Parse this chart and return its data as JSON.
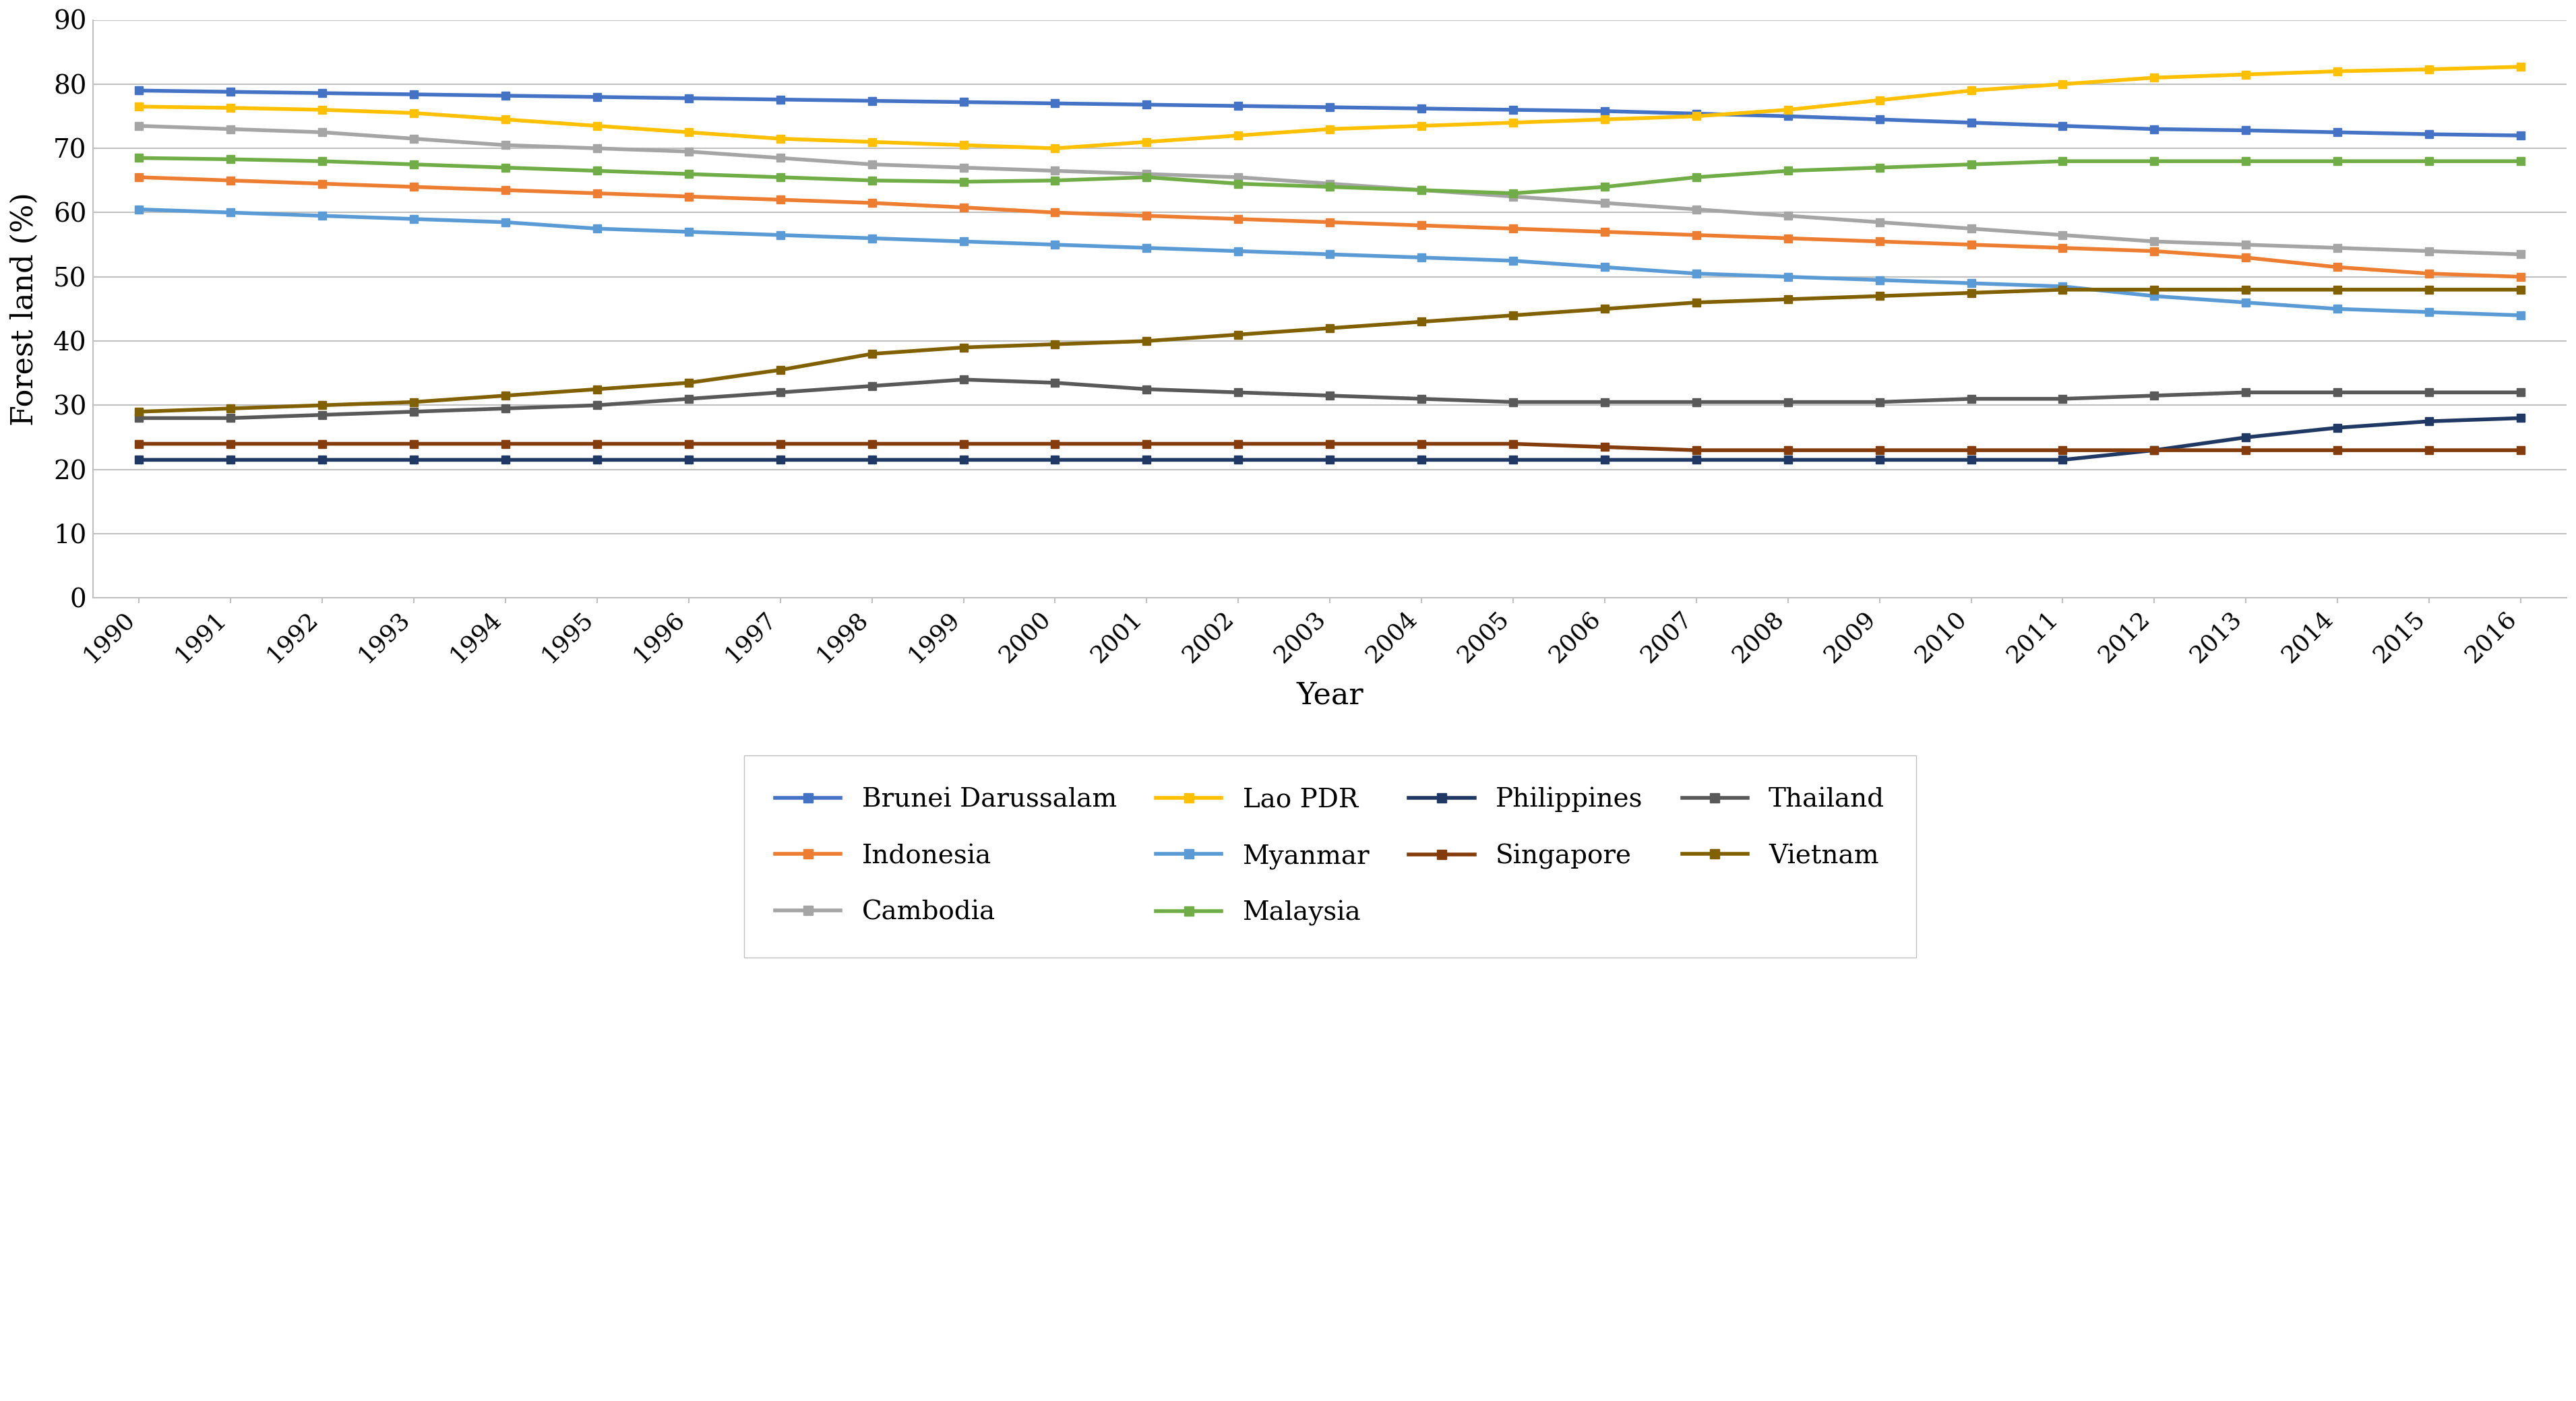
{
  "years": [
    1990,
    1991,
    1992,
    1993,
    1994,
    1995,
    1996,
    1997,
    1998,
    1999,
    2000,
    2001,
    2002,
    2003,
    2004,
    2005,
    2006,
    2007,
    2008,
    2009,
    2010,
    2011,
    2012,
    2013,
    2014,
    2015,
    2016
  ],
  "series": {
    "Brunei Darussalam": {
      "color": "#4472C4",
      "data": [
        79.0,
        78.8,
        78.6,
        78.4,
        78.2,
        78.0,
        77.8,
        77.6,
        77.4,
        77.2,
        77.0,
        76.8,
        76.6,
        76.4,
        76.2,
        76.0,
        75.8,
        75.4,
        75.0,
        74.5,
        74.0,
        73.5,
        73.0,
        72.8,
        72.5,
        72.2,
        72.0
      ]
    },
    "Indonesia": {
      "color": "#ED7D31",
      "data": [
        65.5,
        65.0,
        64.5,
        64.0,
        63.5,
        63.0,
        62.5,
        62.0,
        61.5,
        60.8,
        60.0,
        59.5,
        59.0,
        58.5,
        58.0,
        57.5,
        57.0,
        56.5,
        56.0,
        55.5,
        55.0,
        54.5,
        54.0,
        53.0,
        51.5,
        50.5,
        50.0
      ]
    },
    "Cambodia": {
      "color": "#A5A5A5",
      "data": [
        73.5,
        73.0,
        72.5,
        71.5,
        70.5,
        70.0,
        69.5,
        68.5,
        67.5,
        67.0,
        66.5,
        66.0,
        65.5,
        64.5,
        63.5,
        62.5,
        61.5,
        60.5,
        59.5,
        58.5,
        57.5,
        56.5,
        55.5,
        55.0,
        54.5,
        54.0,
        53.5
      ]
    },
    "Lao PDR": {
      "color": "#FFC000",
      "data": [
        76.5,
        76.3,
        76.0,
        75.5,
        74.5,
        73.5,
        72.5,
        71.5,
        71.0,
        70.5,
        70.0,
        71.0,
        72.0,
        73.0,
        73.5,
        74.0,
        74.5,
        75.0,
        76.0,
        77.5,
        79.0,
        80.0,
        81.0,
        81.5,
        82.0,
        82.3,
        82.7
      ]
    },
    "Myanmar": {
      "color": "#5B9BD5",
      "data": [
        60.5,
        60.0,
        59.5,
        59.0,
        58.5,
        57.5,
        57.0,
        56.5,
        56.0,
        55.5,
        55.0,
        54.5,
        54.0,
        53.5,
        53.0,
        52.5,
        51.5,
        50.5,
        50.0,
        49.5,
        49.0,
        48.5,
        47.0,
        46.0,
        45.0,
        44.5,
        44.0
      ]
    },
    "Malaysia": {
      "color": "#70AD47",
      "data": [
        68.5,
        68.3,
        68.0,
        67.5,
        67.0,
        66.5,
        66.0,
        65.5,
        65.0,
        64.8,
        65.0,
        65.5,
        64.5,
        64.0,
        63.5,
        63.0,
        64.0,
        65.5,
        66.5,
        67.0,
        67.5,
        68.0,
        68.0,
        68.0,
        68.0,
        68.0,
        68.0
      ]
    },
    "Philippines": {
      "color": "#1F3864",
      "data": [
        21.5,
        21.5,
        21.5,
        21.5,
        21.5,
        21.5,
        21.5,
        21.5,
        21.5,
        21.5,
        21.5,
        21.5,
        21.5,
        21.5,
        21.5,
        21.5,
        21.5,
        21.5,
        21.5,
        21.5,
        21.5,
        21.5,
        23.0,
        25.0,
        26.5,
        27.5,
        28.0
      ]
    },
    "Singapore": {
      "color": "#843C0C",
      "data": [
        24.0,
        24.0,
        24.0,
        24.0,
        24.0,
        24.0,
        24.0,
        24.0,
        24.0,
        24.0,
        24.0,
        24.0,
        24.0,
        24.0,
        24.0,
        24.0,
        23.5,
        23.0,
        23.0,
        23.0,
        23.0,
        23.0,
        23.0,
        23.0,
        23.0,
        23.0,
        23.0
      ]
    },
    "Thailand": {
      "color": "#595959",
      "data": [
        28.0,
        28.0,
        28.5,
        29.0,
        29.5,
        30.0,
        31.0,
        32.0,
        33.0,
        34.0,
        33.5,
        32.5,
        32.0,
        31.5,
        31.0,
        30.5,
        30.5,
        30.5,
        30.5,
        30.5,
        31.0,
        31.0,
        31.5,
        32.0,
        32.0,
        32.0,
        32.0
      ]
    },
    "Vietnam": {
      "color": "#806000",
      "data": [
        29.0,
        29.5,
        30.0,
        30.5,
        31.5,
        32.5,
        33.5,
        35.5,
        38.0,
        39.0,
        39.5,
        40.0,
        41.0,
        42.0,
        43.0,
        44.0,
        45.0,
        46.0,
        46.5,
        47.0,
        47.5,
        48.0,
        48.0,
        48.0,
        48.0,
        48.0,
        48.0
      ]
    }
  },
  "ylabel": "Forest land (%)",
  "xlabel": "Year",
  "ylim": [
    0,
    90
  ],
  "yticks": [
    0,
    10,
    20,
    30,
    40,
    50,
    60,
    70,
    80,
    90
  ],
  "background_color": "#FFFFFF",
  "grid_color": "#C0C0C0",
  "line_width": 4.0,
  "legend_order": [
    "Brunei Darussalam",
    "Indonesia",
    "Cambodia",
    "Lao PDR",
    "Myanmar",
    "Malaysia",
    "Philippines",
    "Singapore",
    "Thailand",
    "Vietnam"
  ]
}
